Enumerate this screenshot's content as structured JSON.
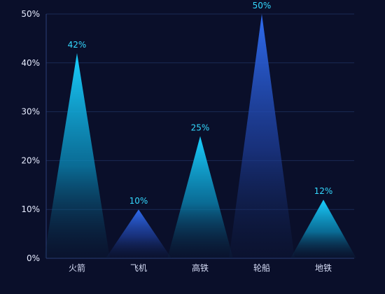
{
  "chart_data": {
    "type": "bar",
    "categories": [
      "火箭",
      "飞机",
      "高铁",
      "轮船",
      "地铁"
    ],
    "values": [
      42,
      10,
      25,
      50,
      12
    ],
    "data_labels": [
      "42%",
      "10%",
      "25%",
      "50%",
      "12%"
    ],
    "y_ticks": [
      "0%",
      "10%",
      "20%",
      "30%",
      "40%",
      "50%"
    ],
    "ylim": [
      0,
      50
    ],
    "grid": true,
    "title": "",
    "xlabel": "",
    "ylabel": "",
    "colors": {
      "background": "#0a0f2a",
      "cyan": "#20c6f2",
      "blue": "#2e64d8",
      "grid": "#1a2a55",
      "label": "#34d9ff",
      "axis": "#2c3f78"
    },
    "mark_colors": [
      "cyan",
      "blue",
      "cyan",
      "blue",
      "cyan"
    ]
  }
}
